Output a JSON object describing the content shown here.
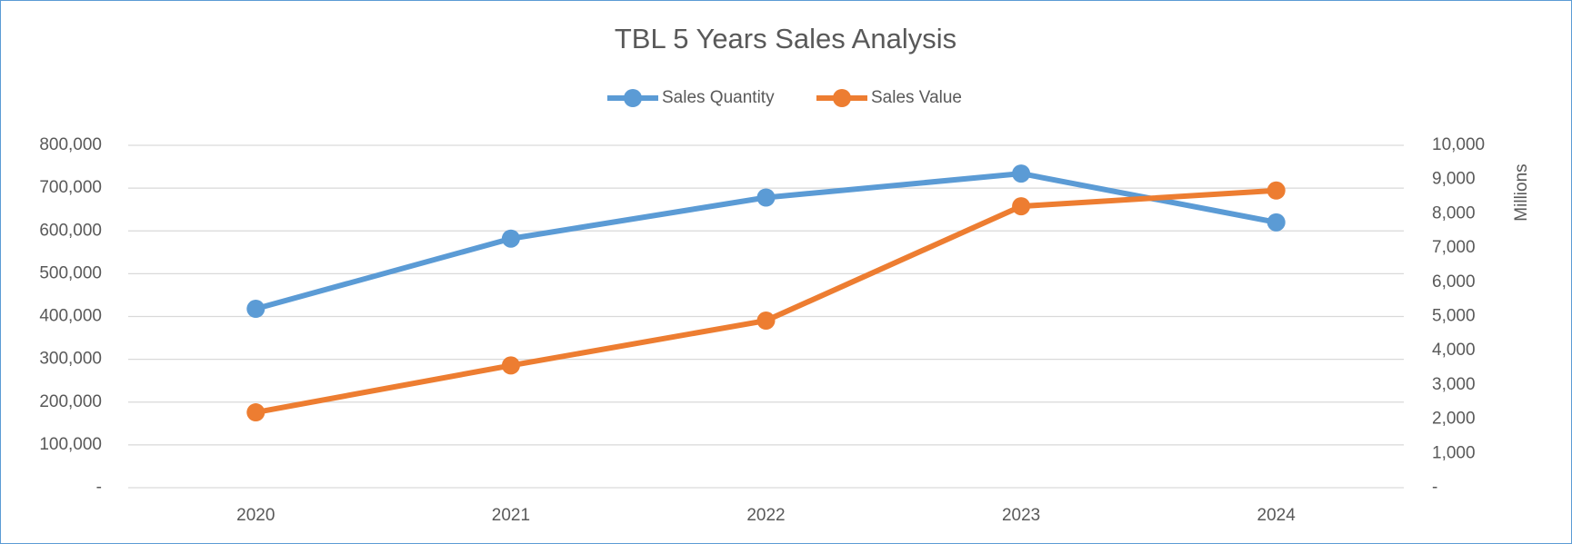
{
  "chart_data": {
    "type": "line",
    "title": "TBL 5 Years Sales Analysis",
    "categories": [
      "2020",
      "2021",
      "2022",
      "2023",
      "2024"
    ],
    "series": [
      {
        "name": "Sales Quantity",
        "color": "#5b9bd5",
        "values": [
          418000,
          582000,
          678000,
          734000,
          620000
        ]
      },
      {
        "name": "Sales Value",
        "color": "#ed7d31",
        "axis": "y2",
        "values": [
          2200,
          3570,
          4880,
          8220,
          8680
        ]
      }
    ],
    "ylim": [
      0,
      800000
    ],
    "yticks": [
      {
        "value": 0,
        "label": "-"
      },
      {
        "value": 100000,
        "label": "100,000"
      },
      {
        "value": 200000,
        "label": "200,000"
      },
      {
        "value": 300000,
        "label": "300,000"
      },
      {
        "value": 400000,
        "label": "400,000"
      },
      {
        "value": 500000,
        "label": "500,000"
      },
      {
        "value": 600000,
        "label": "600,000"
      },
      {
        "value": 700000,
        "label": "700,000"
      },
      {
        "value": 800000,
        "label": "800,000"
      }
    ],
    "y2lim": [
      0,
      10000
    ],
    "y2ticks": [
      {
        "value": 0,
        "label": "-"
      },
      {
        "value": 1000,
        "label": "1,000"
      },
      {
        "value": 2000,
        "label": "2,000"
      },
      {
        "value": 3000,
        "label": "3,000"
      },
      {
        "value": 4000,
        "label": "4,000"
      },
      {
        "value": 5000,
        "label": "5,000"
      },
      {
        "value": 6000,
        "label": "6,000"
      },
      {
        "value": 7000,
        "label": "7,000"
      },
      {
        "value": 8000,
        "label": "8,000"
      },
      {
        "value": 9000,
        "label": "9,000"
      },
      {
        "value": 10000,
        "label": "10,000"
      }
    ],
    "y2label": "Millions",
    "grid": true,
    "legend": "top"
  }
}
